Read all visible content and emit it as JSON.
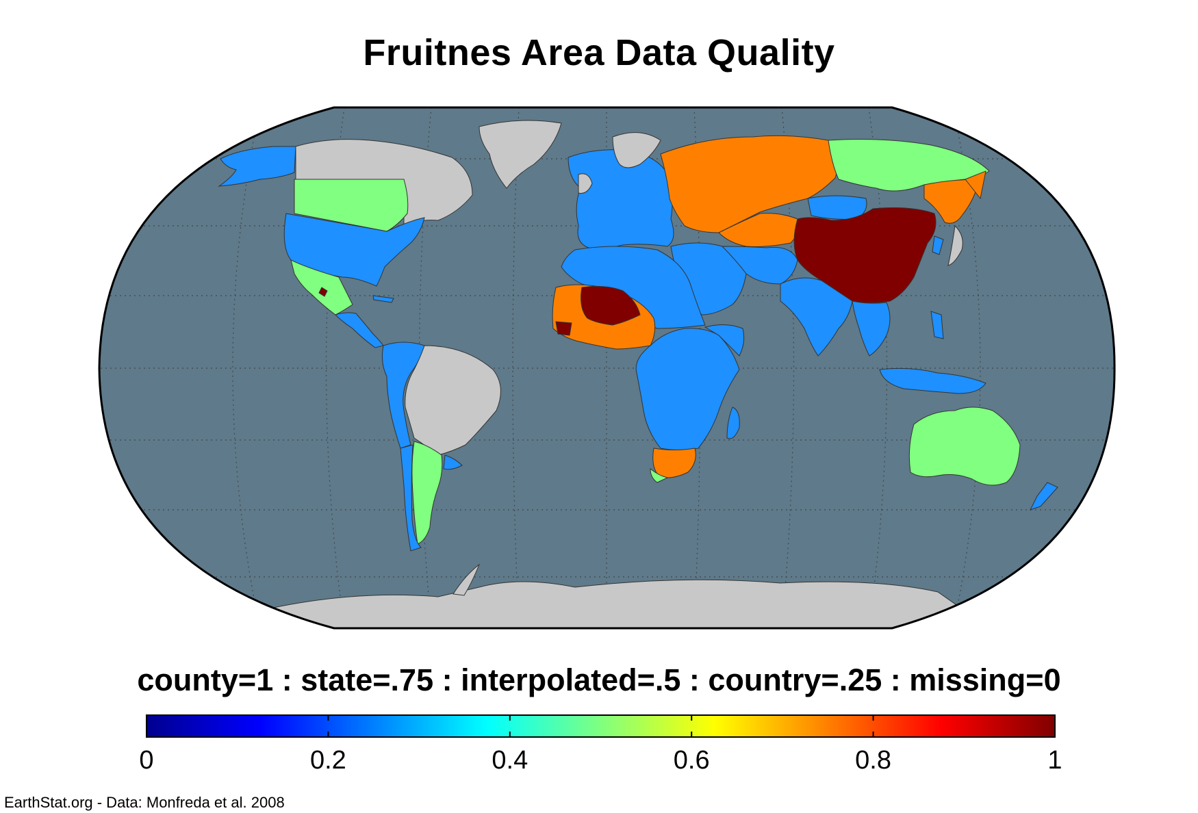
{
  "title": "Fruitnes Area Data Quality",
  "subtitle": "county=1 : state=.75 : interpolated=.5 : country=.25 : missing=0",
  "credit": "EarthStat.org - Data: Monfreda et al. 2008",
  "colorbar": {
    "min": 0,
    "max": 1,
    "colormap": "jet",
    "tick_values": [
      0,
      0.2,
      0.4,
      0.6,
      0.8,
      1
    ],
    "tick_labels": [
      "0",
      "0.2",
      "0.4",
      "0.6",
      "0.8",
      "1"
    ]
  },
  "map": {
    "projection": "Robinson",
    "ocean_color": "#5f7a8a",
    "missing_color": "#c8c8c8",
    "graticule": "dotted",
    "regions": [
      {
        "name": "Alaska",
        "value": 0.25,
        "color": "#1e90ff"
      },
      {
        "name": "Canada",
        "value": 0,
        "color": "#c8c8c8"
      },
      {
        "name": "Greenland",
        "value": 0,
        "color": "#c8c8c8"
      },
      {
        "name": "Northern United States",
        "value": 0.5,
        "color": "#80ff80"
      },
      {
        "name": "United States",
        "value": 0.25,
        "color": "#1e90ff"
      },
      {
        "name": "Mexico",
        "value": 0.5,
        "color": "#80ff80"
      },
      {
        "name": "Central America",
        "value": 0.25,
        "color": "#1e90ff"
      },
      {
        "name": "South America West",
        "value": 0.25,
        "color": "#1e90ff"
      },
      {
        "name": "Brazil",
        "value": 0,
        "color": "#c8c8c8"
      },
      {
        "name": "Argentina",
        "value": 0.5,
        "color": "#80ff80"
      },
      {
        "name": "Europe",
        "value": 0.25,
        "color": "#1e90ff"
      },
      {
        "name": "Russia West",
        "value": 0.75,
        "color": "#ff8000"
      },
      {
        "name": "Russia East",
        "value": 0.5,
        "color": "#80ff80"
      },
      {
        "name": "Kazakhstan",
        "value": 0.75,
        "color": "#ff8000"
      },
      {
        "name": "China",
        "value": 1,
        "color": "#800000"
      },
      {
        "name": "North Africa",
        "value": 0.25,
        "color": "#1e90ff"
      },
      {
        "name": "West Africa (Sahel)",
        "value": 1,
        "color": "#800000"
      },
      {
        "name": "West Africa (Coast)",
        "value": 0.75,
        "color": "#ff8000"
      },
      {
        "name": "Central & East Africa",
        "value": 0.25,
        "color": "#1e90ff"
      },
      {
        "name": "South Africa",
        "value": 0.75,
        "color": "#ff8000"
      },
      {
        "name": "Middle East",
        "value": 0.25,
        "color": "#1e90ff"
      },
      {
        "name": "India & South Asia",
        "value": 0.25,
        "color": "#1e90ff"
      },
      {
        "name": "Southeast Asia",
        "value": 0.25,
        "color": "#1e90ff"
      },
      {
        "name": "Australia",
        "value": 0.5,
        "color": "#80ff80"
      },
      {
        "name": "New Zealand",
        "value": 0.25,
        "color": "#1e90ff"
      },
      {
        "name": "Antarctica",
        "value": 0,
        "color": "#c8c8c8"
      }
    ]
  }
}
